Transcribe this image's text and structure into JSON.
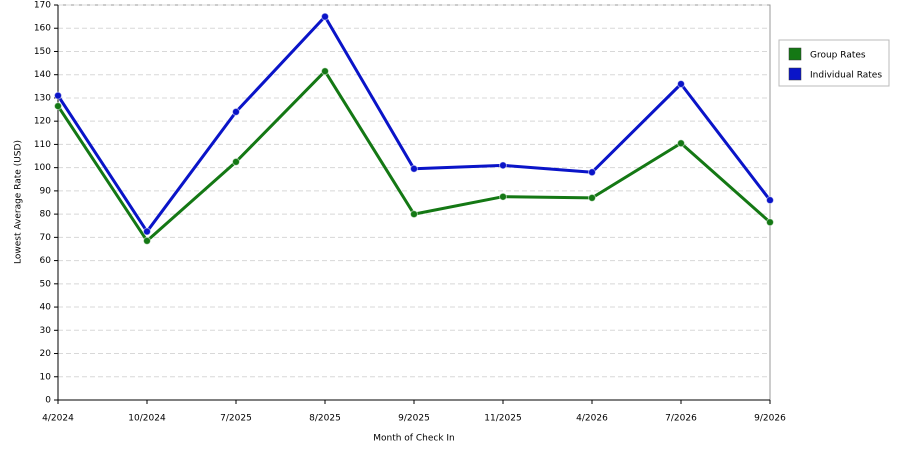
{
  "chart_data": {
    "type": "line",
    "xlabel": "Month of Check In",
    "ylabel": "Lowest Average Rate (USD)",
    "categories": [
      "4/2024",
      "10/2024",
      "7/2025",
      "8/2025",
      "9/2025",
      "11/2025",
      "4/2026",
      "7/2026",
      "9/2026"
    ],
    "series": [
      {
        "name": "Group Rates",
        "color": "#147814",
        "values": [
          126.5,
          68.5,
          102.5,
          141.5,
          80,
          87.5,
          87,
          110.5,
          76.5
        ]
      },
      {
        "name": "Individual Rates",
        "color": "#0a14c8",
        "values": [
          131,
          72.5,
          124,
          165,
          99.5,
          101,
          98,
          136,
          86
        ]
      }
    ],
    "ylim": [
      0,
      170
    ],
    "yticks": [
      0,
      10,
      20,
      30,
      40,
      50,
      60,
      70,
      80,
      90,
      100,
      110,
      120,
      130,
      140,
      150,
      160,
      170
    ],
    "grid": true,
    "legend": "top-right"
  }
}
